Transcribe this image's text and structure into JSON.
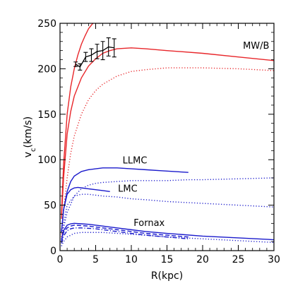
{
  "chart_data": {
    "type": "line",
    "title": "",
    "xlabel": "R(kpc)",
    "ylabel": "v_c(km/s)",
    "xlim": [
      0,
      30
    ],
    "ylim": [
      0,
      250
    ],
    "xticks": [
      0,
      5,
      10,
      15,
      20,
      25,
      30
    ],
    "yticks": [
      0,
      50,
      100,
      150,
      200,
      250
    ],
    "grid": false,
    "colors": {
      "red": "#e8262a",
      "blue": "#1a1acc",
      "black": "#000000"
    },
    "series": [
      {
        "color": "red",
        "style": "solid",
        "x": [
          0.2,
          0.5,
          1,
          1.5,
          2,
          2.5,
          3,
          3.5,
          4,
          4.5,
          5,
          6
        ],
        "y": [
          40,
          95,
          150,
          180,
          200,
          215,
          227,
          236,
          244,
          249,
          253,
          258
        ]
      },
      {
        "color": "red",
        "style": "solid",
        "x": [
          0.2,
          0.5,
          1,
          1.5,
          2,
          3,
          4,
          5,
          6,
          7,
          8,
          10,
          12,
          15,
          20,
          25,
          30
        ],
        "y": [
          35,
          80,
          128,
          153,
          170,
          190,
          203,
          211,
          217,
          220,
          222,
          223,
          222,
          220,
          217,
          213,
          209
        ]
      },
      {
        "color": "red",
        "style": "dotted",
        "x": [
          0.2,
          0.5,
          1,
          1.5,
          2,
          3,
          4,
          5,
          6,
          8,
          10,
          12,
          15,
          18,
          20,
          25,
          30
        ],
        "y": [
          15,
          45,
          80,
          107,
          126,
          150,
          166,
          176,
          183,
          192,
          197,
          199,
          201,
          201,
          201,
          200,
          198
        ]
      },
      {
        "color": "blue",
        "style": "solid",
        "x": [
          0.2,
          0.5,
          1,
          1.5,
          2,
          3,
          4,
          5,
          6,
          7,
          8,
          10,
          12,
          14,
          16,
          18
        ],
        "y": [
          20,
          45,
          65,
          76,
          82,
          87,
          89,
          90,
          91,
          91,
          91,
          90,
          89,
          88,
          87,
          86
        ]
      },
      {
        "color": "blue",
        "style": "dotted",
        "x": [
          0.2,
          0.5,
          1,
          2,
          3,
          4,
          5,
          6,
          8,
          10,
          12,
          15,
          18,
          20,
          25,
          30
        ],
        "y": [
          10,
          25,
          42,
          60,
          68,
          72,
          74,
          75,
          76,
          77,
          77,
          77,
          78,
          78,
          79,
          80
        ]
      },
      {
        "color": "blue",
        "style": "solid",
        "x": [
          0.2,
          0.5,
          1,
          1.5,
          2,
          2.5,
          3,
          4,
          5,
          6,
          7
        ],
        "y": [
          20,
          45,
          62,
          67,
          69,
          69.5,
          69,
          68,
          67,
          66,
          65
        ]
      },
      {
        "color": "blue",
        "style": "dotted",
        "x": [
          0.2,
          0.5,
          1,
          2,
          3,
          4,
          5,
          6,
          8,
          10,
          12,
          15,
          20,
          25,
          30
        ],
        "y": [
          10,
          30,
          50,
          60,
          62,
          62,
          61,
          60,
          59,
          57,
          56,
          54,
          52,
          50,
          48
        ]
      },
      {
        "color": "blue",
        "style": "solid",
        "x": [
          0.2,
          0.5,
          1,
          1.5,
          2,
          3,
          4,
          5,
          6,
          7,
          8,
          10,
          12,
          15,
          20,
          25,
          30
        ],
        "y": [
          12,
          22,
          28,
          29.5,
          30,
          29.5,
          29,
          28,
          27,
          26,
          25,
          23,
          21,
          19,
          16,
          14,
          12
        ]
      },
      {
        "color": "blue",
        "style": "dashed",
        "x": [
          0.2,
          0.5,
          1,
          1.5,
          2,
          3,
          4,
          5,
          6,
          7,
          8,
          10,
          12,
          15,
          18
        ],
        "y": [
          10,
          20,
          25,
          27,
          28,
          27.5,
          27,
          26,
          25,
          24,
          23,
          21,
          19,
          17,
          15
        ]
      },
      {
        "color": "blue",
        "style": "dashdot",
        "x": [
          0.2,
          0.5,
          1,
          1.5,
          2,
          3,
          4,
          5,
          6,
          7,
          8,
          10,
          12,
          15,
          18
        ],
        "y": [
          8,
          16,
          22,
          24,
          25,
          25,
          24.5,
          24,
          23,
          22,
          21,
          19,
          17,
          15,
          13
        ]
      },
      {
        "color": "blue",
        "style": "dotted",
        "x": [
          0.2,
          0.5,
          1,
          2,
          3,
          4,
          5,
          6,
          8,
          10,
          12,
          15,
          20,
          25,
          30
        ],
        "y": [
          5,
          10,
          15,
          19,
          20,
          20,
          20,
          20,
          19,
          18,
          17,
          15,
          13,
          11,
          9
        ]
      }
    ],
    "data_points": {
      "color": "black",
      "x": [
        2.2,
        2.8,
        3.6,
        4.4,
        5.2,
        6.0,
        6.8,
        7.6
      ],
      "y": [
        205,
        202,
        213,
        215,
        219,
        220,
        224,
        223
      ],
      "err": [
        2.5,
        3.5,
        5,
        7,
        8,
        10,
        10,
        10
      ]
    },
    "annotations": [
      {
        "text": "MW/B",
        "x": 27.5,
        "y": 222
      },
      {
        "text": "LLMC",
        "x": 10.5,
        "y": 96
      },
      {
        "text": "LMC",
        "x": 9.5,
        "y": 65
      },
      {
        "text": "Fornax",
        "x": 12.5,
        "y": 27
      }
    ]
  }
}
